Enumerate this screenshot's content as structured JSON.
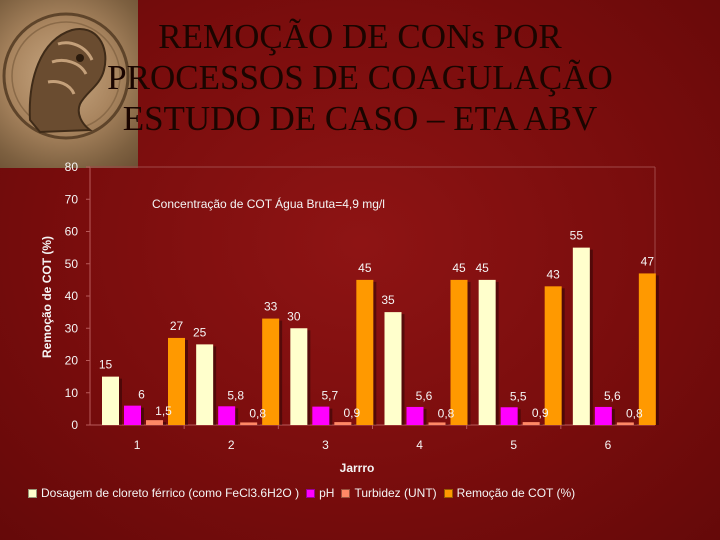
{
  "slide": {
    "title_lines": [
      "REMOÇÃO DE CONs POR",
      "PROCESSOS DE COAGULAÇÃO",
      "ESTUDO DE CASO – ETA ABV"
    ]
  },
  "chart_data": {
    "type": "bar",
    "categories": [
      "1",
      "2",
      "3",
      "4",
      "5",
      "6"
    ],
    "xlabel": "Jarrro",
    "ylabel": "Remoção de COT (%)",
    "ylim": [
      0,
      80
    ],
    "yticks": [
      0,
      10,
      20,
      30,
      40,
      50,
      60,
      70,
      80
    ],
    "grid": false,
    "legend_position": "bottom",
    "annotation": "Concentração de COT Água Bruta=4,9 mg/l",
    "series": [
      {
        "name": "Dosagem de cloreto férrico (como FeCl3.6H2O )",
        "color": "#ffffcc",
        "values": [
          15,
          25,
          30,
          35,
          45,
          55
        ],
        "labels": [
          "15",
          "25",
          "30",
          "35",
          "45",
          "55"
        ]
      },
      {
        "name": "pH",
        "color": "#ff00ff",
        "values": [
          6,
          5.8,
          5.7,
          5.6,
          5.5,
          5.6
        ],
        "labels": [
          "6",
          "5,8",
          "5,7",
          "5,6",
          "5,5",
          "5,6"
        ]
      },
      {
        "name": "Turbidez (UNT)",
        "color": "#ff8866",
        "values": [
          1.5,
          0.8,
          0.9,
          0.8,
          0.9,
          0.8
        ],
        "labels": [
          "1,5",
          "0,8",
          "0,9",
          "0,8",
          "0,9",
          "0,8"
        ]
      },
      {
        "name": "Remoção de COT (%)",
        "color": "#ff9900",
        "values": [
          27,
          33,
          45,
          45,
          43,
          47
        ],
        "labels": [
          "27",
          "33",
          "45",
          "45",
          "43",
          "47"
        ]
      }
    ]
  }
}
